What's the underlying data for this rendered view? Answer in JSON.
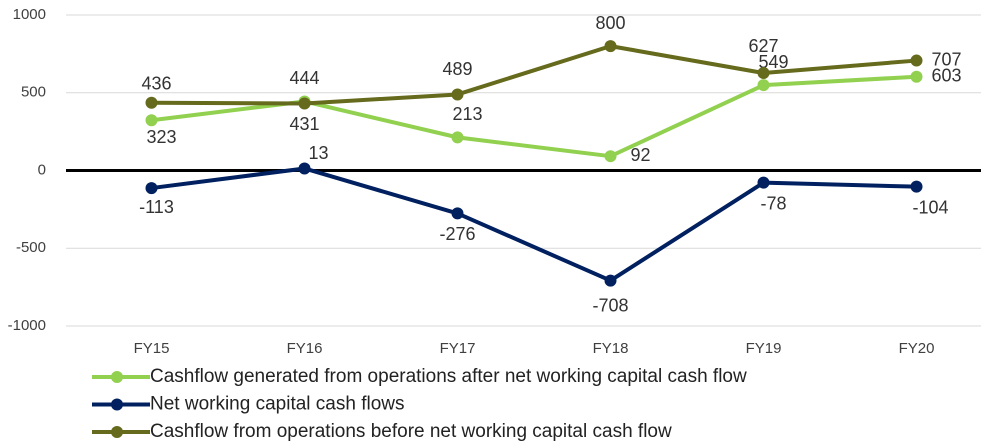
{
  "chart_data": {
    "type": "line",
    "categories": [
      "FY15",
      "FY16",
      "FY17",
      "FY18",
      "FY19",
      "FY20"
    ],
    "series": [
      {
        "name": "Cashflow generated from operations after net working capital cash flow",
        "color": "#92d050",
        "values": [
          323,
          444,
          213,
          92,
          549,
          603
        ]
      },
      {
        "name": "Net working capital cash flows",
        "color": "#002060",
        "values": [
          -113,
          13,
          -276,
          -708,
          -78,
          -104
        ]
      },
      {
        "name": "Cashflow from operations before net working capital cash flow",
        "color": "#666a1c",
        "values": [
          436,
          431,
          489,
          800,
          627,
          707
        ]
      }
    ],
    "ylim": [
      -1000,
      1000
    ],
    "yticks": [
      -1000,
      -500,
      0,
      500,
      1000
    ],
    "grid": true,
    "legend": "bottom"
  }
}
